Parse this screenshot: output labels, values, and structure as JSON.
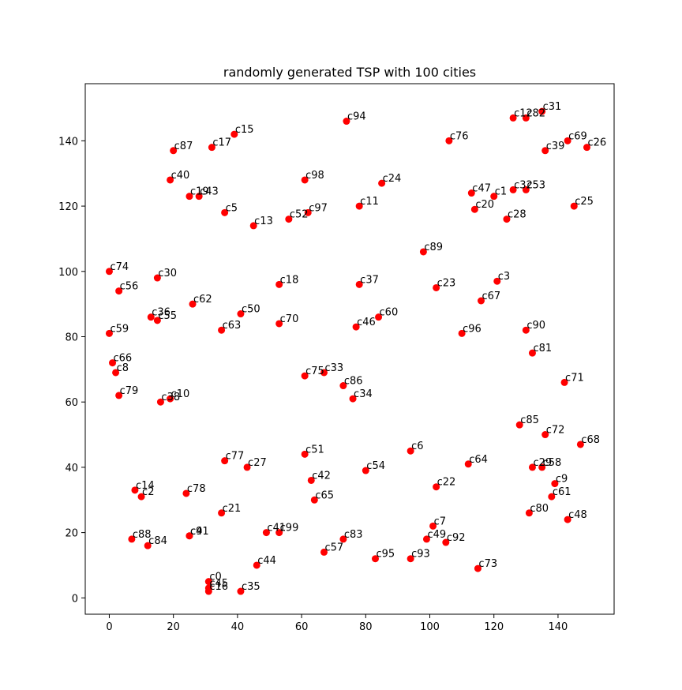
{
  "chart_data": {
    "type": "scatter",
    "title": "randomly generated TSP with 100 cities",
    "xlabel": "",
    "ylabel": "",
    "xlim": [
      -7.5,
      157.5
    ],
    "ylim": [
      -5,
      157.5
    ],
    "x_ticks": [
      0,
      20,
      40,
      60,
      80,
      100,
      120,
      140
    ],
    "y_ticks": [
      0,
      20,
      40,
      60,
      80,
      100,
      120,
      140
    ],
    "grid": false,
    "marker_color": "#ff0000",
    "points": [
      {
        "label": "c0",
        "x": 31,
        "y": 5
      },
      {
        "label": "c1",
        "x": 120,
        "y": 123
      },
      {
        "label": "c2",
        "x": 10,
        "y": 31
      },
      {
        "label": "c3",
        "x": 121,
        "y": 97
      },
      {
        "label": "c4",
        "x": 25,
        "y": 19
      },
      {
        "label": "c5",
        "x": 36,
        "y": 118
      },
      {
        "label": "c6",
        "x": 94,
        "y": 45
      },
      {
        "label": "c7",
        "x": 101,
        "y": 22
      },
      {
        "label": "c8",
        "x": 2,
        "y": 69
      },
      {
        "label": "c9",
        "x": 139,
        "y": 35
      },
      {
        "label": "c10",
        "x": 19,
        "y": 61
      },
      {
        "label": "c11",
        "x": 78,
        "y": 120
      },
      {
        "label": "c12",
        "x": 126,
        "y": 147
      },
      {
        "label": "c13",
        "x": 45,
        "y": 114
      },
      {
        "label": "c14",
        "x": 8,
        "y": 33
      },
      {
        "label": "c15",
        "x": 39,
        "y": 142
      },
      {
        "label": "c16",
        "x": 31,
        "y": 2
      },
      {
        "label": "c17",
        "x": 32,
        "y": 138
      },
      {
        "label": "c18",
        "x": 53,
        "y": 96
      },
      {
        "label": "c19",
        "x": 25,
        "y": 123
      },
      {
        "label": "c20",
        "x": 114,
        "y": 119
      },
      {
        "label": "c21",
        "x": 35,
        "y": 26
      },
      {
        "label": "c22",
        "x": 102,
        "y": 34
      },
      {
        "label": "c23",
        "x": 102,
        "y": 95
      },
      {
        "label": "c24",
        "x": 85,
        "y": 127
      },
      {
        "label": "c25",
        "x": 145,
        "y": 120
      },
      {
        "label": "c26",
        "x": 149,
        "y": 138
      },
      {
        "label": "c27",
        "x": 43,
        "y": 40
      },
      {
        "label": "c28",
        "x": 124,
        "y": 116
      },
      {
        "label": "c29",
        "x": 132,
        "y": 40
      },
      {
        "label": "c30",
        "x": 15,
        "y": 98
      },
      {
        "label": "c31",
        "x": 135,
        "y": 149
      },
      {
        "label": "c32",
        "x": 126,
        "y": 125
      },
      {
        "label": "c33",
        "x": 67,
        "y": 69
      },
      {
        "label": "c34",
        "x": 76,
        "y": 61
      },
      {
        "label": "c35",
        "x": 41,
        "y": 2
      },
      {
        "label": "c36",
        "x": 13,
        "y": 86
      },
      {
        "label": "c37",
        "x": 78,
        "y": 96
      },
      {
        "label": "c38",
        "x": 16,
        "y": 60
      },
      {
        "label": "c39",
        "x": 136,
        "y": 137
      },
      {
        "label": "c40",
        "x": 19,
        "y": 128
      },
      {
        "label": "c41",
        "x": 49,
        "y": 20
      },
      {
        "label": "c42",
        "x": 63,
        "y": 36
      },
      {
        "label": "c43",
        "x": 28,
        "y": 123
      },
      {
        "label": "c44",
        "x": 46,
        "y": 10
      },
      {
        "label": "c45",
        "x": 31,
        "y": 3
      },
      {
        "label": "c46",
        "x": 77,
        "y": 83
      },
      {
        "label": "c47",
        "x": 113,
        "y": 124
      },
      {
        "label": "c48",
        "x": 143,
        "y": 24
      },
      {
        "label": "c49",
        "x": 99,
        "y": 18
      },
      {
        "label": "c50",
        "x": 41,
        "y": 87
      },
      {
        "label": "c51",
        "x": 61,
        "y": 44
      },
      {
        "label": "c52",
        "x": 56,
        "y": 116
      },
      {
        "label": "c53",
        "x": 130,
        "y": 125
      },
      {
        "label": "c54",
        "x": 80,
        "y": 39
      },
      {
        "label": "c55",
        "x": 15,
        "y": 85
      },
      {
        "label": "c56",
        "x": 3,
        "y": 94
      },
      {
        "label": "c57",
        "x": 67,
        "y": 14
      },
      {
        "label": "c58",
        "x": 135,
        "y": 40
      },
      {
        "label": "c59",
        "x": 0,
        "y": 81
      },
      {
        "label": "c60",
        "x": 84,
        "y": 86
      },
      {
        "label": "c61",
        "x": 138,
        "y": 31
      },
      {
        "label": "c62",
        "x": 26,
        "y": 90
      },
      {
        "label": "c63",
        "x": 35,
        "y": 82
      },
      {
        "label": "c64",
        "x": 112,
        "y": 41
      },
      {
        "label": "c65",
        "x": 64,
        "y": 30
      },
      {
        "label": "c66",
        "x": 1,
        "y": 72
      },
      {
        "label": "c67",
        "x": 116,
        "y": 91
      },
      {
        "label": "c68",
        "x": 147,
        "y": 47
      },
      {
        "label": "c69",
        "x": 143,
        "y": 140
      },
      {
        "label": "c70",
        "x": 53,
        "y": 84
      },
      {
        "label": "c71",
        "x": 142,
        "y": 66
      },
      {
        "label": "c72",
        "x": 136,
        "y": 50
      },
      {
        "label": "c73",
        "x": 115,
        "y": 9
      },
      {
        "label": "c74",
        "x": 0,
        "y": 100
      },
      {
        "label": "c75",
        "x": 61,
        "y": 68
      },
      {
        "label": "c76",
        "x": 106,
        "y": 140
      },
      {
        "label": "c77",
        "x": 36,
        "y": 42
      },
      {
        "label": "c78",
        "x": 24,
        "y": 32
      },
      {
        "label": "c79",
        "x": 3,
        "y": 62
      },
      {
        "label": "c80",
        "x": 131,
        "y": 26
      },
      {
        "label": "c81",
        "x": 132,
        "y": 75
      },
      {
        "label": "c82",
        "x": 130,
        "y": 147
      },
      {
        "label": "c83",
        "x": 73,
        "y": 18
      },
      {
        "label": "c84",
        "x": 12,
        "y": 16
      },
      {
        "label": "c85",
        "x": 128,
        "y": 53
      },
      {
        "label": "c86",
        "x": 73,
        "y": 65
      },
      {
        "label": "c87",
        "x": 20,
        "y": 137
      },
      {
        "label": "c88",
        "x": 7,
        "y": 18
      },
      {
        "label": "c89",
        "x": 98,
        "y": 106
      },
      {
        "label": "c90",
        "x": 130,
        "y": 82
      },
      {
        "label": "c91",
        "x": 25,
        "y": 19
      },
      {
        "label": "c92",
        "x": 105,
        "y": 17
      },
      {
        "label": "c93",
        "x": 94,
        "y": 12
      },
      {
        "label": "c94",
        "x": 74,
        "y": 146
      },
      {
        "label": "c95",
        "x": 83,
        "y": 12
      },
      {
        "label": "c96",
        "x": 110,
        "y": 81
      },
      {
        "label": "c97",
        "x": 62,
        "y": 118
      },
      {
        "label": "c98",
        "x": 61,
        "y": 128
      },
      {
        "label": "c99",
        "x": 53,
        "y": 20
      }
    ]
  }
}
